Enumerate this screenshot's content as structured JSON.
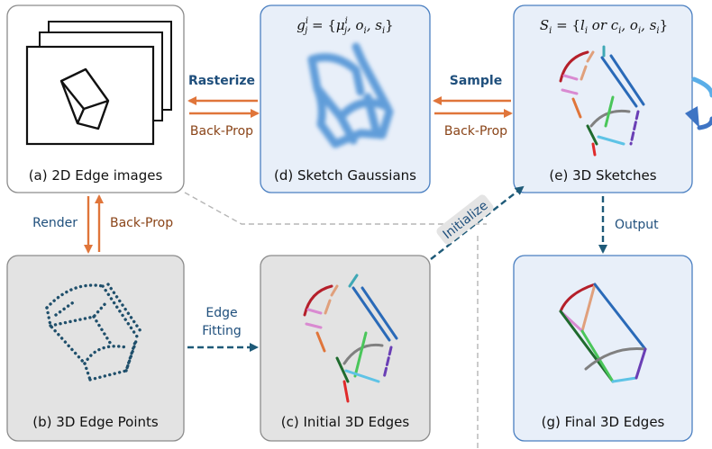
{
  "panels": {
    "edge_images": {
      "caption": "(a) 2D Edge images"
    },
    "edge_points": {
      "caption": "(b) 3D Edge Points"
    },
    "initial_edges": {
      "caption": "(c) Initial 3D Edges"
    },
    "sketch_gaussians": {
      "caption": "(d) Sketch Gaussians",
      "formula": "g = {μ , o , s }",
      "formula_parts": {
        "g": "g",
        "sup": "i",
        "sub": "j",
        "eq": " = {",
        "mu": "μ",
        "mu_sup": "i",
        "mu_sub": "j",
        "rest": ", o",
        "o_sub": "i",
        "comma": ", s",
        "s_sub": "i",
        "close": "}"
      }
    },
    "sketches_3d": {
      "caption": "(e) 3D Sketches",
      "formula_parts": {
        "S": "S",
        "S_sub": "i",
        "eq": " = {",
        "l": "l",
        "l_sub": "i",
        "or": " or ",
        "c": "c",
        "c_sub": "i",
        "o": ", o",
        "o_sub": "i",
        "s": ", s",
        "s_sub": "i",
        "close": "}"
      }
    },
    "final_edges": {
      "caption": "(g) Final 3D Edges"
    }
  },
  "arrows": {
    "rasterize": "Rasterize",
    "backprop_a_d": "Back-Prop",
    "sample": "Sample",
    "backprop_d_e": "Back-Prop",
    "render": "Render",
    "backprop_b_a": "Back-Prop",
    "edge_fitting_1": "Edge",
    "edge_fitting_2": "Fitting",
    "initialize": "Initialize",
    "output": "Output"
  },
  "colors": {
    "blue_panel_fill": "#e8eff9",
    "blue_panel_stroke": "#4a7fc1",
    "gray_panel_fill": "#e3e3e3",
    "orange_arrow": "#e0753a",
    "dark_blue_arrow": "#1e5a78",
    "point_color": "#1f4f6b",
    "gaussian_color": "#4a8fd4"
  }
}
